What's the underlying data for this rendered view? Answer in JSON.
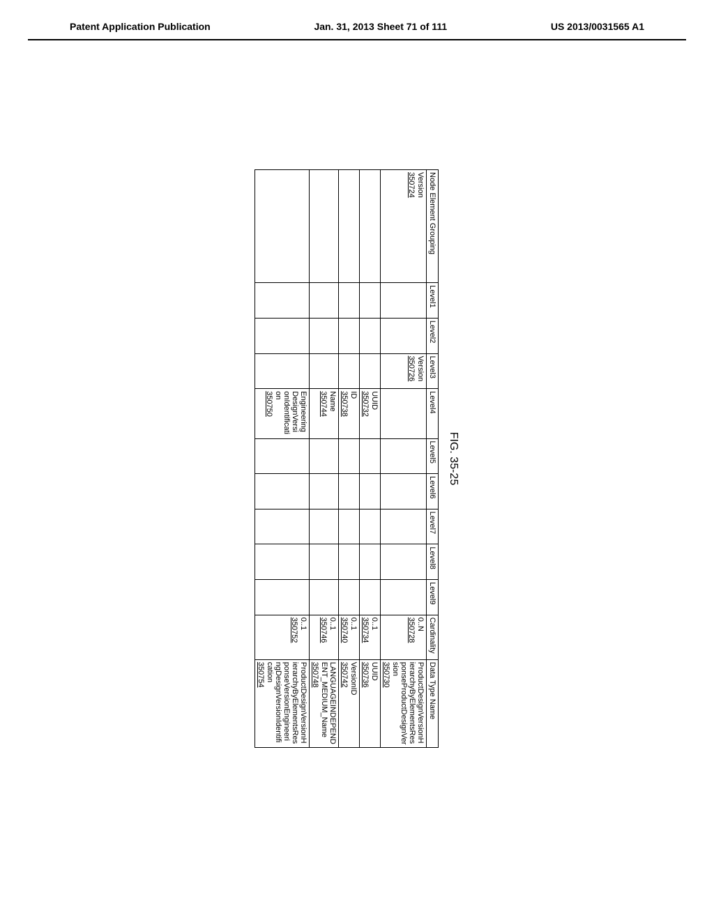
{
  "header": {
    "left": "Patent Application Publication",
    "center": "Jan. 31, 2013  Sheet 71 of 111",
    "right": "US 2013/0031565 A1"
  },
  "figure": {
    "label": "FIG. 35-25",
    "columns": [
      "Node Element Grouping",
      "Level1",
      "Level2",
      "Level3",
      "Level4",
      "Level5",
      "Level6",
      "Level7",
      "Level8",
      "Level9",
      "Cardinality",
      "Data Type Name"
    ],
    "rows": [
      {
        "grouping": "Version",
        "grouping_ref": "350724",
        "level3": "Version",
        "level3_ref": "350726",
        "cardinality": "0..N",
        "cardinality_ref": "350728",
        "datatype": "ProductDesignVersionHierarchyByElementsResponseProductDesignVersion",
        "datatype_ref": "350730"
      },
      {
        "level4": "UUID",
        "level4_ref": "350732",
        "cardinality": "0..1",
        "cardinality_ref": "350734",
        "datatype": "UUID",
        "datatype_ref": "350736"
      },
      {
        "level4": "ID",
        "level4_ref": "350738",
        "cardinality": "0..1",
        "cardinality_ref": "350740",
        "datatype": "VersionID",
        "datatype_ref": "350742"
      },
      {
        "level4": "Name",
        "level4_ref": "350744",
        "cardinality": "0..1",
        "cardinality_ref": "350746",
        "datatype": "LANGUAGEINDEPENDENT_MEDIUM_Name",
        "datatype_ref": "350748"
      },
      {
        "level4": "EngineeringDesignVersionIdentification",
        "level4_ref": "350750",
        "cardinality": "0..1",
        "cardinality_ref": "350752",
        "datatype": "ProductDesignVersionHierarchyByElementsResponseVersionEngineeringDesignVersionIdentification",
        "datatype_ref": "350754"
      }
    ]
  }
}
